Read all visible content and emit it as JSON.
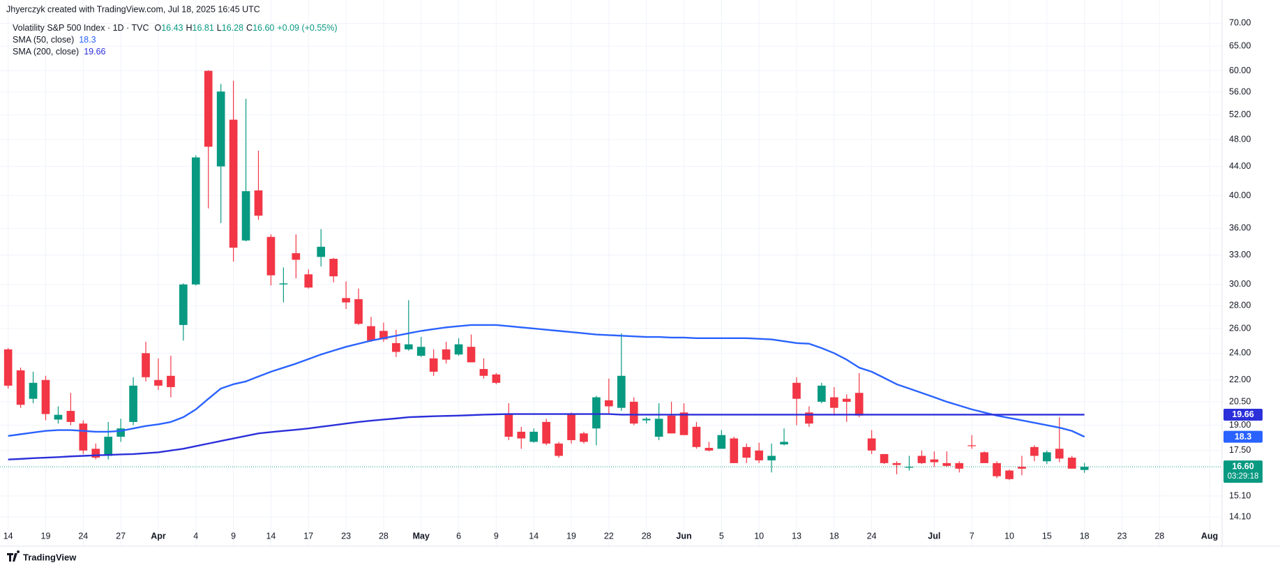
{
  "header": {
    "credit": "Jhyerczyk created with TradingView.com, Jul 18, 2025 16:45 UTC"
  },
  "footer": {
    "brand": "TradingView"
  },
  "chart_data": {
    "type": "candlestick",
    "title": "Volatility S&P 500 Index · 1D · TVC",
    "legend": [
      {
        "key": "O",
        "value": "16.43"
      },
      {
        "key": "H",
        "value": "16.81"
      },
      {
        "key": "L",
        "value": "16.28"
      },
      {
        "key": "C",
        "value": "16.60"
      }
    ],
    "change": "+0.09 (+0.55%)",
    "up_color": "#089981",
    "down_color": "#f23645",
    "open": [
      24.3,
      22.7,
      20.7,
      22.0,
      19.35,
      19.9,
      19.1,
      17.6,
      17.2,
      18.3,
      19.2,
      24.0,
      22.0,
      22.3,
      26.3,
      30.0,
      60.0,
      44.0,
      51.2,
      34.6,
      40.7,
      35.0,
      30.0,
      33.2,
      31.0,
      32.8,
      32.6,
      28.7,
      28.6,
      26.2,
      25.8,
      24.8,
      24.3,
      23.8,
      23.6,
      24.3,
      23.9,
      24.5,
      22.8,
      22.4,
      19.7,
      18.6,
      18.0,
      19.2,
      17.9,
      19.7,
      18.5,
      18.8,
      20.6,
      20.1,
      20.5,
      19.3,
      18.3,
      19.6,
      19.8,
      18.9,
      17.65,
      17.6,
      18.2,
      17.7,
      17.5,
      16.95,
      17.85,
      21.8,
      19.8,
      20.5,
      20.8,
      20.7,
      21.1,
      18.2,
      17.3,
      16.8,
      16.55,
      17.2,
      17.0,
      16.8,
      16.8,
      17.8,
      17.4,
      16.8,
      16.4,
      16.6,
      17.7,
      16.9,
      17.6,
      17.1,
      16.43
    ],
    "high": [
      24.4,
      22.9,
      22.6,
      22.3,
      20.2,
      21.1,
      19.3,
      17.9,
      19.2,
      19.4,
      22.2,
      24.9,
      23.6,
      23.8,
      30.1,
      45.6,
      60.1,
      57.5,
      58.1,
      54.8,
      46.3,
      35.3,
      31.7,
      35.3,
      31.5,
      35.9,
      32.7,
      30.3,
      29.6,
      27.0,
      26.5,
      25.9,
      28.5,
      25.3,
      24.3,
      24.9,
      25.2,
      25.5,
      23.6,
      22.5,
      20.4,
      18.9,
      18.8,
      19.4,
      18.0,
      19.8,
      18.6,
      20.9,
      22.1,
      25.6,
      20.8,
      19.5,
      20.4,
      20.5,
      20.4,
      19.2,
      18.0,
      18.7,
      18.3,
      17.9,
      17.95,
      17.9,
      18.8,
      22.2,
      20.2,
      21.8,
      21.5,
      21.0,
      22.5,
      18.7,
      17.3,
      16.9,
      17.2,
      17.5,
      17.45,
      17.45,
      16.9,
      18.4,
      17.45,
      16.9,
      16.45,
      17.2,
      17.8,
      17.5,
      19.5,
      17.2,
      16.81
    ],
    "low": [
      21.4,
      20.1,
      20.4,
      19.3,
      19.1,
      19.0,
      17.3,
      17.0,
      17.0,
      18.0,
      19.0,
      21.9,
      21.3,
      20.8,
      25.0,
      29.9,
      38.4,
      36.6,
      32.3,
      34.5,
      37.0,
      29.9,
      28.3,
      30.6,
      29.6,
      31.8,
      30.2,
      27.7,
      26.3,
      24.9,
      24.9,
      23.7,
      24.2,
      23.7,
      22.3,
      23.2,
      23.8,
      23.3,
      22.1,
      21.7,
      18.1,
      17.6,
      17.95,
      17.8,
      17.1,
      17.9,
      17.9,
      17.8,
      19.7,
      19.9,
      19.0,
      19.1,
      18.1,
      18.5,
      18.4,
      17.6,
      17.45,
      17.6,
      16.8,
      16.8,
      16.8,
      16.3,
      17.8,
      19.0,
      18.9,
      20.4,
      19.6,
      19.2,
      19.5,
      17.3,
      16.75,
      16.2,
      16.4,
      16.75,
      16.6,
      16.6,
      16.3,
      17.6,
      16.8,
      16.0,
      15.9,
      16.15,
      16.9,
      16.75,
      16.85,
      16.5,
      16.28
    ],
    "close": [
      21.6,
      20.3,
      21.8,
      19.7,
      19.65,
      19.2,
      17.5,
      17.1,
      18.3,
      18.8,
      21.6,
      22.2,
      21.6,
      21.5,
      30.0,
      45.3,
      46.9,
      56.1,
      33.8,
      40.6,
      37.5,
      30.9,
      30.1,
      32.5,
      29.7,
      33.9,
      30.8,
      28.3,
      26.4,
      25.0,
      25.1,
      24.1,
      24.7,
      24.5,
      22.6,
      23.5,
      24.7,
      23.3,
      22.3,
      21.8,
      18.3,
      18.2,
      18.6,
      17.9,
      17.2,
      18.1,
      18.0,
      20.8,
      20.2,
      22.3,
      19.1,
      19.4,
      19.4,
      18.5,
      18.4,
      17.7,
      17.5,
      18.4,
      16.8,
      17.1,
      16.95,
      17.2,
      18.0,
      20.7,
      19.1,
      21.6,
      20.1,
      20.5,
      19.6,
      17.5,
      16.8,
      16.7,
      16.6,
      16.8,
      16.85,
      16.65,
      16.5,
      17.75,
      16.8,
      16.1,
      15.95,
      16.5,
      17.2,
      17.4,
      17.05,
      16.5,
      16.6
    ],
    "last_price_label": "16.60",
    "countdown": "03:29:18",
    "series": [
      {
        "name": "SMA (50, close)",
        "color": "#2962ff",
        "last_label": "18.3",
        "values": [
          18.35,
          18.45,
          18.55,
          18.65,
          18.7,
          18.7,
          18.65,
          18.6,
          18.6,
          18.65,
          18.8,
          18.95,
          19.05,
          19.2,
          19.5,
          20.0,
          20.7,
          21.4,
          21.7,
          21.9,
          22.25,
          22.6,
          22.9,
          23.2,
          23.55,
          23.9,
          24.2,
          24.5,
          24.75,
          25.0,
          25.2,
          25.4,
          25.6,
          25.8,
          25.95,
          26.1,
          26.2,
          26.3,
          26.3,
          26.3,
          26.2,
          26.1,
          26.0,
          25.9,
          25.8,
          25.7,
          25.6,
          25.5,
          25.45,
          25.4,
          25.35,
          25.3,
          25.3,
          25.25,
          25.25,
          25.2,
          25.2,
          25.2,
          25.2,
          25.2,
          25.15,
          25.1,
          24.95,
          24.8,
          24.75,
          24.4,
          24.0,
          23.5,
          22.9,
          22.6,
          22.15,
          21.7,
          21.4,
          21.1,
          20.8,
          20.5,
          20.25,
          20.0,
          19.8,
          19.6,
          19.45,
          19.3,
          19.15,
          19.0,
          18.85,
          18.65,
          18.3
        ]
      },
      {
        "name": "SMA (200, close)",
        "color": "#2b2fd9",
        "last_label": "19.66",
        "values": [
          17.0,
          17.03,
          17.07,
          17.1,
          17.13,
          17.17,
          17.2,
          17.23,
          17.25,
          17.28,
          17.3,
          17.35,
          17.4,
          17.5,
          17.6,
          17.75,
          17.9,
          18.05,
          18.2,
          18.35,
          18.5,
          18.58,
          18.65,
          18.72,
          18.8,
          18.9,
          19.0,
          19.1,
          19.2,
          19.28,
          19.35,
          19.42,
          19.5,
          19.53,
          19.56,
          19.58,
          19.6,
          19.63,
          19.66,
          19.68,
          19.7,
          19.7,
          19.7,
          19.7,
          19.7,
          19.7,
          19.7,
          19.7,
          19.7,
          19.66,
          19.66,
          19.66,
          19.66,
          19.66,
          19.66,
          19.66,
          19.66,
          19.66,
          19.66,
          19.66,
          19.66,
          19.66,
          19.66,
          19.66,
          19.66,
          19.66,
          19.66,
          19.66,
          19.66,
          19.66,
          19.66,
          19.66,
          19.66,
          19.66,
          19.66,
          19.66,
          19.66,
          19.66,
          19.66,
          19.66,
          19.66,
          19.66,
          19.66,
          19.66,
          19.66,
          19.66,
          19.66
        ]
      }
    ],
    "log_scale": true,
    "grid": true,
    "ylim": [
      13.7,
      72
    ],
    "yticks": [
      {
        "value": 70,
        "label": "70.00"
      },
      {
        "value": 65,
        "label": "65.00"
      },
      {
        "value": 60,
        "label": "60.00"
      },
      {
        "value": 56,
        "label": "56.00"
      },
      {
        "value": 52,
        "label": "52.00"
      },
      {
        "value": 48,
        "label": "48.00"
      },
      {
        "value": 44,
        "label": "44.00"
      },
      {
        "value": 40,
        "label": "40.00"
      },
      {
        "value": 36,
        "label": "36.00"
      },
      {
        "value": 33,
        "label": "33.00"
      },
      {
        "value": 30,
        "label": "30.00"
      },
      {
        "value": 28,
        "label": "28.00"
      },
      {
        "value": 26,
        "label": "26.00"
      },
      {
        "value": 24,
        "label": "24.00"
      },
      {
        "value": 22,
        "label": "22.00"
      },
      {
        "value": 20.5,
        "label": "20.50"
      },
      {
        "value": 19,
        "label": "19.00"
      },
      {
        "value": 17.5,
        "label": "17.50"
      },
      {
        "value": 15.1,
        "label": "15.10"
      },
      {
        "value": 14.1,
        "label": "14.10"
      }
    ],
    "xlim": [
      -0.65,
      97
    ],
    "xticks": [
      {
        "value": 0,
        "label": "14"
      },
      {
        "value": 3,
        "label": "19"
      },
      {
        "value": 6,
        "label": "24"
      },
      {
        "value": 9,
        "label": "27"
      },
      {
        "value": 12,
        "label": "Apr"
      },
      {
        "value": 15,
        "label": "4"
      },
      {
        "value": 18,
        "label": "9"
      },
      {
        "value": 21,
        "label": "14"
      },
      {
        "value": 24,
        "label": "17"
      },
      {
        "value": 27,
        "label": "23"
      },
      {
        "value": 30,
        "label": "28"
      },
      {
        "value": 33,
        "label": "May"
      },
      {
        "value": 36,
        "label": "6"
      },
      {
        "value": 39,
        "label": "9"
      },
      {
        "value": 42,
        "label": "14"
      },
      {
        "value": 45,
        "label": "19"
      },
      {
        "value": 48,
        "label": "22"
      },
      {
        "value": 51,
        "label": "28"
      },
      {
        "value": 54,
        "label": "Jun"
      },
      {
        "value": 57,
        "label": "5"
      },
      {
        "value": 60,
        "label": "10"
      },
      {
        "value": 63,
        "label": "13"
      },
      {
        "value": 66,
        "label": "18"
      },
      {
        "value": 69,
        "label": "24"
      },
      {
        "value": 74,
        "label": "Jul"
      },
      {
        "value": 77,
        "label": "7"
      },
      {
        "value": 80,
        "label": "10"
      },
      {
        "value": 83,
        "label": "15"
      },
      {
        "value": 86,
        "label": "18"
      },
      {
        "value": 89,
        "label": "23"
      },
      {
        "value": 92,
        "label": "28"
      },
      {
        "value": 96,
        "label": "Aug"
      }
    ]
  }
}
